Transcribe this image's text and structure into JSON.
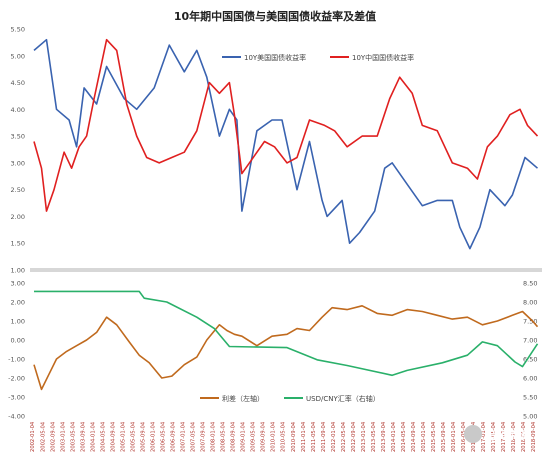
{
  "watermark": "追风杂谈",
  "chart_data": [
    {
      "type": "line",
      "title": "10年期中国国债与美国国债收益率及差值",
      "ylim": [
        1.0,
        5.5
      ],
      "y_ticks": [
        "5.50",
        "5.00",
        "4.50",
        "4.00",
        "3.50",
        "3.00",
        "2.50",
        "2.00",
        "1.50",
        "1.00"
      ],
      "grid": false,
      "legend_position": "top-right",
      "series": [
        {
          "name": "10Y美国国债收益率",
          "color": "#3a63b0",
          "x": [
            "2002-01",
            "2002-06",
            "2002-10",
            "2003-03",
            "2003-06",
            "2003-09",
            "2004-02",
            "2004-06",
            "2005-01",
            "2005-06",
            "2006-01",
            "2006-07",
            "2007-01",
            "2007-06",
            "2007-10",
            "2008-03",
            "2008-07",
            "2008-10",
            "2008-12",
            "2009-06",
            "2009-12",
            "2010-04",
            "2010-10",
            "2011-03",
            "2011-08",
            "2011-10",
            "2012-04",
            "2012-07",
            "2012-11",
            "2013-05",
            "2013-09",
            "2013-12",
            "2014-06",
            "2014-12",
            "2015-06",
            "2015-12",
            "2016-03",
            "2016-07",
            "2016-11",
            "2017-03",
            "2017-09",
            "2017-12",
            "2018-05",
            "2018-10"
          ],
          "values": [
            5.1,
            5.3,
            4.0,
            3.8,
            3.3,
            4.4,
            4.1,
            4.8,
            4.2,
            4.0,
            4.4,
            5.2,
            4.7,
            5.1,
            4.6,
            3.5,
            4.0,
            3.8,
            2.1,
            3.6,
            3.8,
            3.8,
            2.5,
            3.4,
            2.3,
            2.0,
            2.3,
            1.5,
            1.7,
            2.1,
            2.9,
            3.0,
            2.6,
            2.2,
            2.3,
            2.3,
            1.8,
            1.4,
            1.8,
            2.5,
            2.2,
            2.4,
            3.1,
            2.9
          ]
        },
        {
          "name": "10Y中国国债收益率",
          "color": "#e02020",
          "x": [
            "2002-01",
            "2002-04",
            "2002-06",
            "2002-09",
            "2003-01",
            "2003-04",
            "2003-07",
            "2003-10",
            "2004-01",
            "2004-06",
            "2004-10",
            "2005-02",
            "2005-06",
            "2005-10",
            "2006-03",
            "2006-08",
            "2007-01",
            "2007-06",
            "2007-11",
            "2008-03",
            "2008-07",
            "2008-09",
            "2008-12",
            "2009-03",
            "2009-09",
            "2010-01",
            "2010-06",
            "2010-10",
            "2011-03",
            "2011-09",
            "2012-01",
            "2012-06",
            "2012-12",
            "2013-06",
            "2013-11",
            "2014-03",
            "2014-08",
            "2014-12",
            "2015-06",
            "2015-12",
            "2016-06",
            "2016-10",
            "2017-02",
            "2017-06",
            "2017-11",
            "2018-03",
            "2018-06",
            "2018-10"
          ],
          "values": [
            3.4,
            2.9,
            2.1,
            2.5,
            3.2,
            2.9,
            3.3,
            3.5,
            4.2,
            5.3,
            5.1,
            4.1,
            3.5,
            3.1,
            3.0,
            3.1,
            3.2,
            3.6,
            4.5,
            4.3,
            4.5,
            3.9,
            2.8,
            3.0,
            3.4,
            3.3,
            3.0,
            3.1,
            3.8,
            3.7,
            3.6,
            3.3,
            3.5,
            3.5,
            4.2,
            4.6,
            4.3,
            3.7,
            3.6,
            3.0,
            2.9,
            2.7,
            3.3,
            3.5,
            3.9,
            4.0,
            3.7,
            3.5
          ]
        }
      ]
    },
    {
      "type": "line",
      "ylim": [
        -4.0,
        3.0
      ],
      "y_ticks": [
        "3.00",
        "2.00",
        "1.00",
        "0.00",
        "-1.00",
        "-2.00",
        "-3.00",
        "-4.00"
      ],
      "y2lim": [
        5.0,
        8.5
      ],
      "y2_ticks": [
        "8.50",
        "8.00",
        "7.50",
        "7.00",
        "6.50",
        "6.00",
        "5.50",
        "5.00"
      ],
      "grid": false,
      "legend_position": "bottom",
      "x_tick_labels": [
        "2002-01-04",
        "2002-05-04",
        "2002-09-04",
        "2003-01-04",
        "2003-05-04",
        "2003-09-04",
        "2004-01-04",
        "2004-05-04",
        "2004-09-04",
        "2005-01-04",
        "2005-05-04",
        "2005-09-04",
        "2006-01-04",
        "2006-05-04",
        "2006-09-04",
        "2007-01-04",
        "2007-05-04",
        "2007-09-04",
        "2008-01-04",
        "2008-05-04",
        "2008-09-04",
        "2009-01-04",
        "2009-05-04",
        "2009-09-04",
        "2010-01-04",
        "2010-05-04",
        "2010-09-04",
        "2011-01-04",
        "2011-05-04",
        "2011-09-04",
        "2012-01-04",
        "2012-05-04",
        "2012-09-04",
        "2013-01-04",
        "2013-05-04",
        "2013-09-04",
        "2014-01-04",
        "2014-05-04",
        "2014-09-04",
        "2015-01-04",
        "2015-05-04",
        "2015-09-04",
        "2016-01-04",
        "2016-05-04",
        "2016-09-04",
        "2017-01-04",
        "2017-05-04",
        "2017-09-04",
        "2018-01-04",
        "2018-05-04",
        "2018-09-04"
      ],
      "series": [
        {
          "name": "利差（左轴）",
          "axis": "left",
          "color": "#c06a1e",
          "x": [
            "2002-01",
            "2002-04",
            "2002-07",
            "2002-10",
            "2003-02",
            "2003-06",
            "2003-10",
            "2004-02",
            "2004-06",
            "2004-10",
            "2005-03",
            "2005-07",
            "2005-11",
            "2006-04",
            "2006-08",
            "2007-01",
            "2007-06",
            "2007-10",
            "2008-03",
            "2008-06",
            "2008-09",
            "2008-12",
            "2009-06",
            "2009-12",
            "2010-06",
            "2010-10",
            "2011-03",
            "2011-08",
            "2011-12",
            "2012-06",
            "2012-12",
            "2013-06",
            "2013-12",
            "2014-06",
            "2014-12",
            "2015-06",
            "2015-12",
            "2016-06",
            "2016-12",
            "2017-06",
            "2017-12",
            "2018-04",
            "2018-08",
            "2018-10"
          ],
          "values": [
            -1.3,
            -2.6,
            -1.8,
            -1.0,
            -0.6,
            -0.3,
            0.0,
            0.4,
            1.2,
            0.8,
            -0.1,
            -0.8,
            -1.2,
            -2.0,
            -1.9,
            -1.3,
            -0.9,
            0.0,
            0.8,
            0.5,
            0.3,
            0.2,
            -0.3,
            0.2,
            0.3,
            0.6,
            0.5,
            1.2,
            1.7,
            1.6,
            1.8,
            1.4,
            1.3,
            1.6,
            1.5,
            1.3,
            1.1,
            1.2,
            0.8,
            1.0,
            1.3,
            1.5,
            1.0,
            0.7
          ]
        },
        {
          "name": "USD/CNY汇率（右轴）",
          "axis": "right",
          "color": "#2ab06a",
          "x": [
            "2002-01",
            "2005-07",
            "2005-09",
            "2006-06",
            "2007-06",
            "2008-01",
            "2008-07",
            "2010-06",
            "2011-06",
            "2012-06",
            "2013-12",
            "2014-06",
            "2015-08",
            "2016-06",
            "2016-12",
            "2017-06",
            "2018-01",
            "2018-04",
            "2018-10"
          ],
          "values": [
            8.28,
            8.28,
            8.1,
            8.0,
            7.6,
            7.3,
            6.83,
            6.8,
            6.48,
            6.33,
            6.07,
            6.2,
            6.4,
            6.6,
            6.95,
            6.85,
            6.42,
            6.3,
            6.9
          ]
        }
      ]
    }
  ]
}
